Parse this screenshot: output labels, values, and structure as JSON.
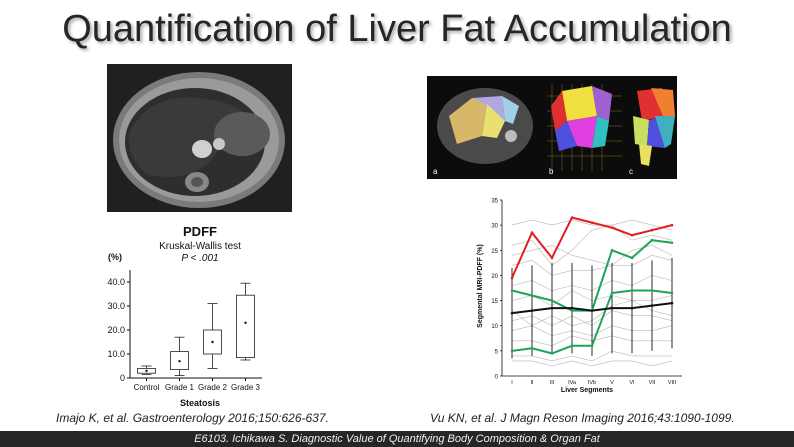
{
  "slide_title": "Quantification of Liver Fat Accumulation",
  "seg_panels": {
    "a": "a",
    "b": "b",
    "c": "c"
  },
  "box_plot": {
    "title": "PDFF",
    "subtitle": "Kruskal-Wallis test",
    "pvalue": "P < .001",
    "y_unit": "(%)",
    "y_ticks": [
      "40.0",
      "30.0",
      "20.0",
      "10.0",
      "0"
    ],
    "categories": [
      "Control",
      "Grade 1",
      "Grade 2",
      "Grade 3"
    ],
    "xlabel": "Steatosis"
  },
  "line_plot": {
    "ylabel": "Segmental MRI-PDFF (%)",
    "xlabel": "Liver Segments",
    "y_ticks": [
      "35",
      "30",
      "25",
      "20",
      "15",
      "10",
      "5",
      "0"
    ],
    "categories": [
      "I",
      "II",
      "III",
      "IVa",
      "IVb",
      "V",
      "VI",
      "VII",
      "VIII"
    ]
  },
  "chart_data": [
    {
      "type": "box",
      "title": "PDFF",
      "subtitle": "Kruskal-Wallis test",
      "xlabel": "Steatosis",
      "ylabel": "(%)",
      "ylim": [
        0,
        45
      ],
      "categories": [
        "Control",
        "Grade 1",
        "Grade 2",
        "Grade 3"
      ],
      "series": [
        {
          "stat": "whisker_low",
          "values": [
            1.5,
            1.0,
            4.0,
            7.5
          ]
        },
        {
          "stat": "q1",
          "values": [
            2.0,
            3.5,
            10.0,
            8.5
          ]
        },
        {
          "stat": "median_dot",
          "values": [
            3.0,
            7.0,
            15.0,
            23.0
          ]
        },
        {
          "stat": "q3",
          "values": [
            4.0,
            11.0,
            20.0,
            34.5
          ]
        },
        {
          "stat": "whisker_high",
          "values": [
            5.0,
            17.0,
            31.0,
            39.5
          ]
        }
      ]
    },
    {
      "type": "line",
      "xlabel": "Liver Segments",
      "ylabel": "Segmental MRI-PDFF (%)",
      "ylim": [
        0,
        35
      ],
      "categories": [
        "I",
        "II",
        "III",
        "IVa",
        "IVb",
        "V",
        "VI",
        "VII",
        "VIII"
      ],
      "series": [
        {
          "color": "#e02020",
          "values": [
            19.5,
            28.5,
            23.5,
            31.5,
            30.5,
            29.5,
            28,
            29,
            30
          ]
        },
        {
          "color": "#1fa35a",
          "values": [
            17,
            16,
            15,
            13,
            13,
            25,
            23.5,
            27,
            26.5
          ]
        },
        {
          "color": "#1fa35a",
          "values": [
            5,
            5.5,
            4.5,
            6,
            6,
            16.5,
            17,
            17,
            16.5
          ]
        },
        {
          "color": "#111111",
          "values": [
            12.5,
            13,
            13.5,
            13.5,
            13,
            13.5,
            13.5,
            14,
            14.5
          ]
        }
      ]
    }
  ],
  "citations": {
    "left": "Imajo K, et al. Gastroenterology 2016;150:626-637.",
    "right": "Vu KN, et al. J Magn Reson Imaging 2016;43:1090-1099."
  },
  "footer": "E6103. Ichikawa S. Diagnostic Value of Quantifying  Body Composition & Organ Fat"
}
